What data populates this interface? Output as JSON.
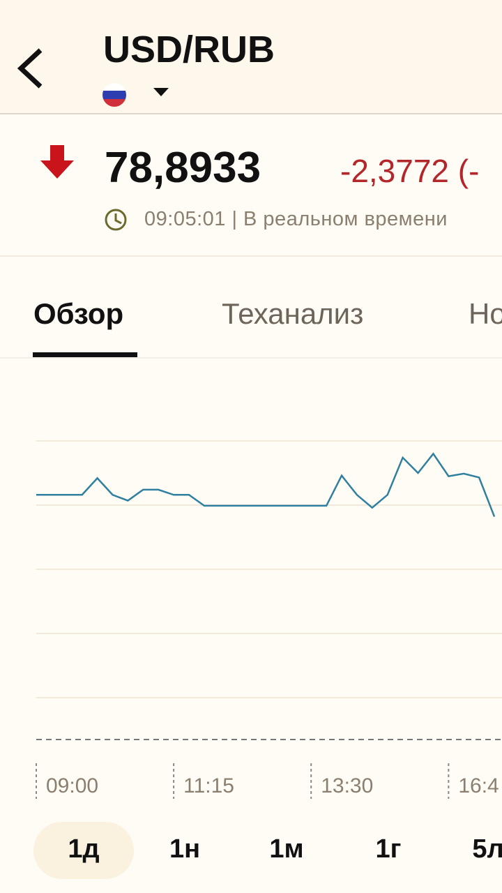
{
  "header": {
    "title": "USD/RUB"
  },
  "quote": {
    "price": "78,8933",
    "change": "-2,3772 (-",
    "time": "09:05:01 | В реальном времени"
  },
  "tabs": [
    "Обзор",
    "Теханализ",
    "Но"
  ],
  "chart_data": {
    "type": "line",
    "x": [
      0,
      1,
      2,
      3,
      4,
      5,
      6,
      7,
      8,
      9,
      10,
      11,
      12,
      13,
      14,
      15,
      16,
      17,
      18,
      19,
      20,
      21,
      22,
      23,
      24,
      25,
      26,
      27,
      28,
      29,
      30
    ],
    "series": [
      {
        "color": "#2f7fa0",
        "values": [
          4.16,
          4.16,
          4.16,
          4.16,
          4.42,
          4.16,
          4.07,
          4.24,
          4.24,
          4.16,
          4.16,
          3.99,
          3.99,
          3.99,
          3.99,
          3.99,
          3.99,
          3.99,
          3.99,
          3.99,
          4.46,
          4.16,
          3.96,
          4.16,
          4.74,
          4.5,
          4.8,
          4.45,
          4.49,
          4.43,
          3.82
        ]
      }
    ],
    "xlim": [
      0,
      30.5
    ],
    "ylim": [
      0,
      6
    ],
    "xticks": [
      {
        "value": 0,
        "label": "09:00"
      },
      {
        "value": 9,
        "label": "11:15"
      },
      {
        "value": 18,
        "label": "13:30"
      },
      {
        "value": 27,
        "label": "16:4"
      }
    ],
    "yticks": [
      1,
      2,
      3,
      4,
      5
    ],
    "grid": true
  },
  "ranges": [
    "1д",
    "1н",
    "1м",
    "1г",
    "5л"
  ]
}
